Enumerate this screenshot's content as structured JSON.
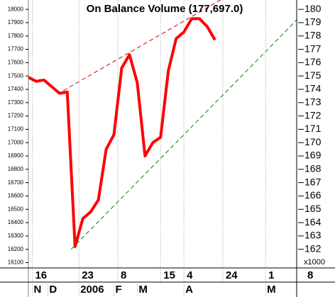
{
  "chart_data": {
    "type": "line",
    "title": "On Balance Volume (177,697.0)",
    "series": [
      {
        "color": "#ff0000",
        "values": [
          17490,
          17460,
          17470,
          17420,
          17370,
          17380,
          16220,
          16430,
          16480,
          16570,
          16950,
          17060,
          17560,
          17660,
          17450,
          16900,
          17000,
          17040,
          17540,
          17780,
          17830,
          17930,
          17930,
          17870,
          17770
        ]
      }
    ],
    "trendlines": [
      {
        "color": "#cc0000",
        "x": [
          4.5,
          25
        ],
        "values": [
          17390,
          18080
        ]
      },
      {
        "color": "#008000",
        "x": [
          5.5,
          34.5
        ],
        "values": [
          16200,
          17920
        ]
      }
    ],
    "xlim": [
      0,
      34.5
    ],
    "xticks": [
      {
        "value": 0.5,
        "label": "16"
      },
      {
        "value": 6.5,
        "label": "23"
      },
      {
        "value": 11.5,
        "label": "8"
      },
      {
        "value": 17,
        "label": "15"
      },
      {
        "value": 20,
        "label": "4"
      },
      {
        "value": 25,
        "label": "24"
      },
      {
        "value": 30.5,
        "label": "1"
      },
      {
        "value": 35.5,
        "label": "8"
      }
    ],
    "xticks2": [
      {
        "value": 0.5,
        "label": "N"
      },
      {
        "value": 2.5,
        "label": "D"
      },
      {
        "value": 6.5,
        "label": "2006"
      },
      {
        "value": 11,
        "label": "F"
      },
      {
        "value": 14,
        "label": "M"
      },
      {
        "value": 20,
        "label": "A"
      },
      {
        "value": 30.5,
        "label": "M"
      }
    ],
    "ylim": [
      16060,
      18070
    ],
    "yticks": [
      16100,
      16200,
      16300,
      16400,
      16500,
      16600,
      16700,
      16800,
      16900,
      17000,
      17100,
      17200,
      17300,
      17400,
      17500,
      17600,
      17700,
      17800,
      17900,
      18000
    ],
    "y2lim": [
      160.6,
      180.7
    ],
    "y2ticks": [
      162,
      163,
      164,
      165,
      166,
      167,
      168,
      169,
      170,
      171,
      172,
      173,
      174,
      175,
      176,
      177,
      178,
      179,
      180
    ],
    "y2label": "x1000",
    "grid": true
  }
}
